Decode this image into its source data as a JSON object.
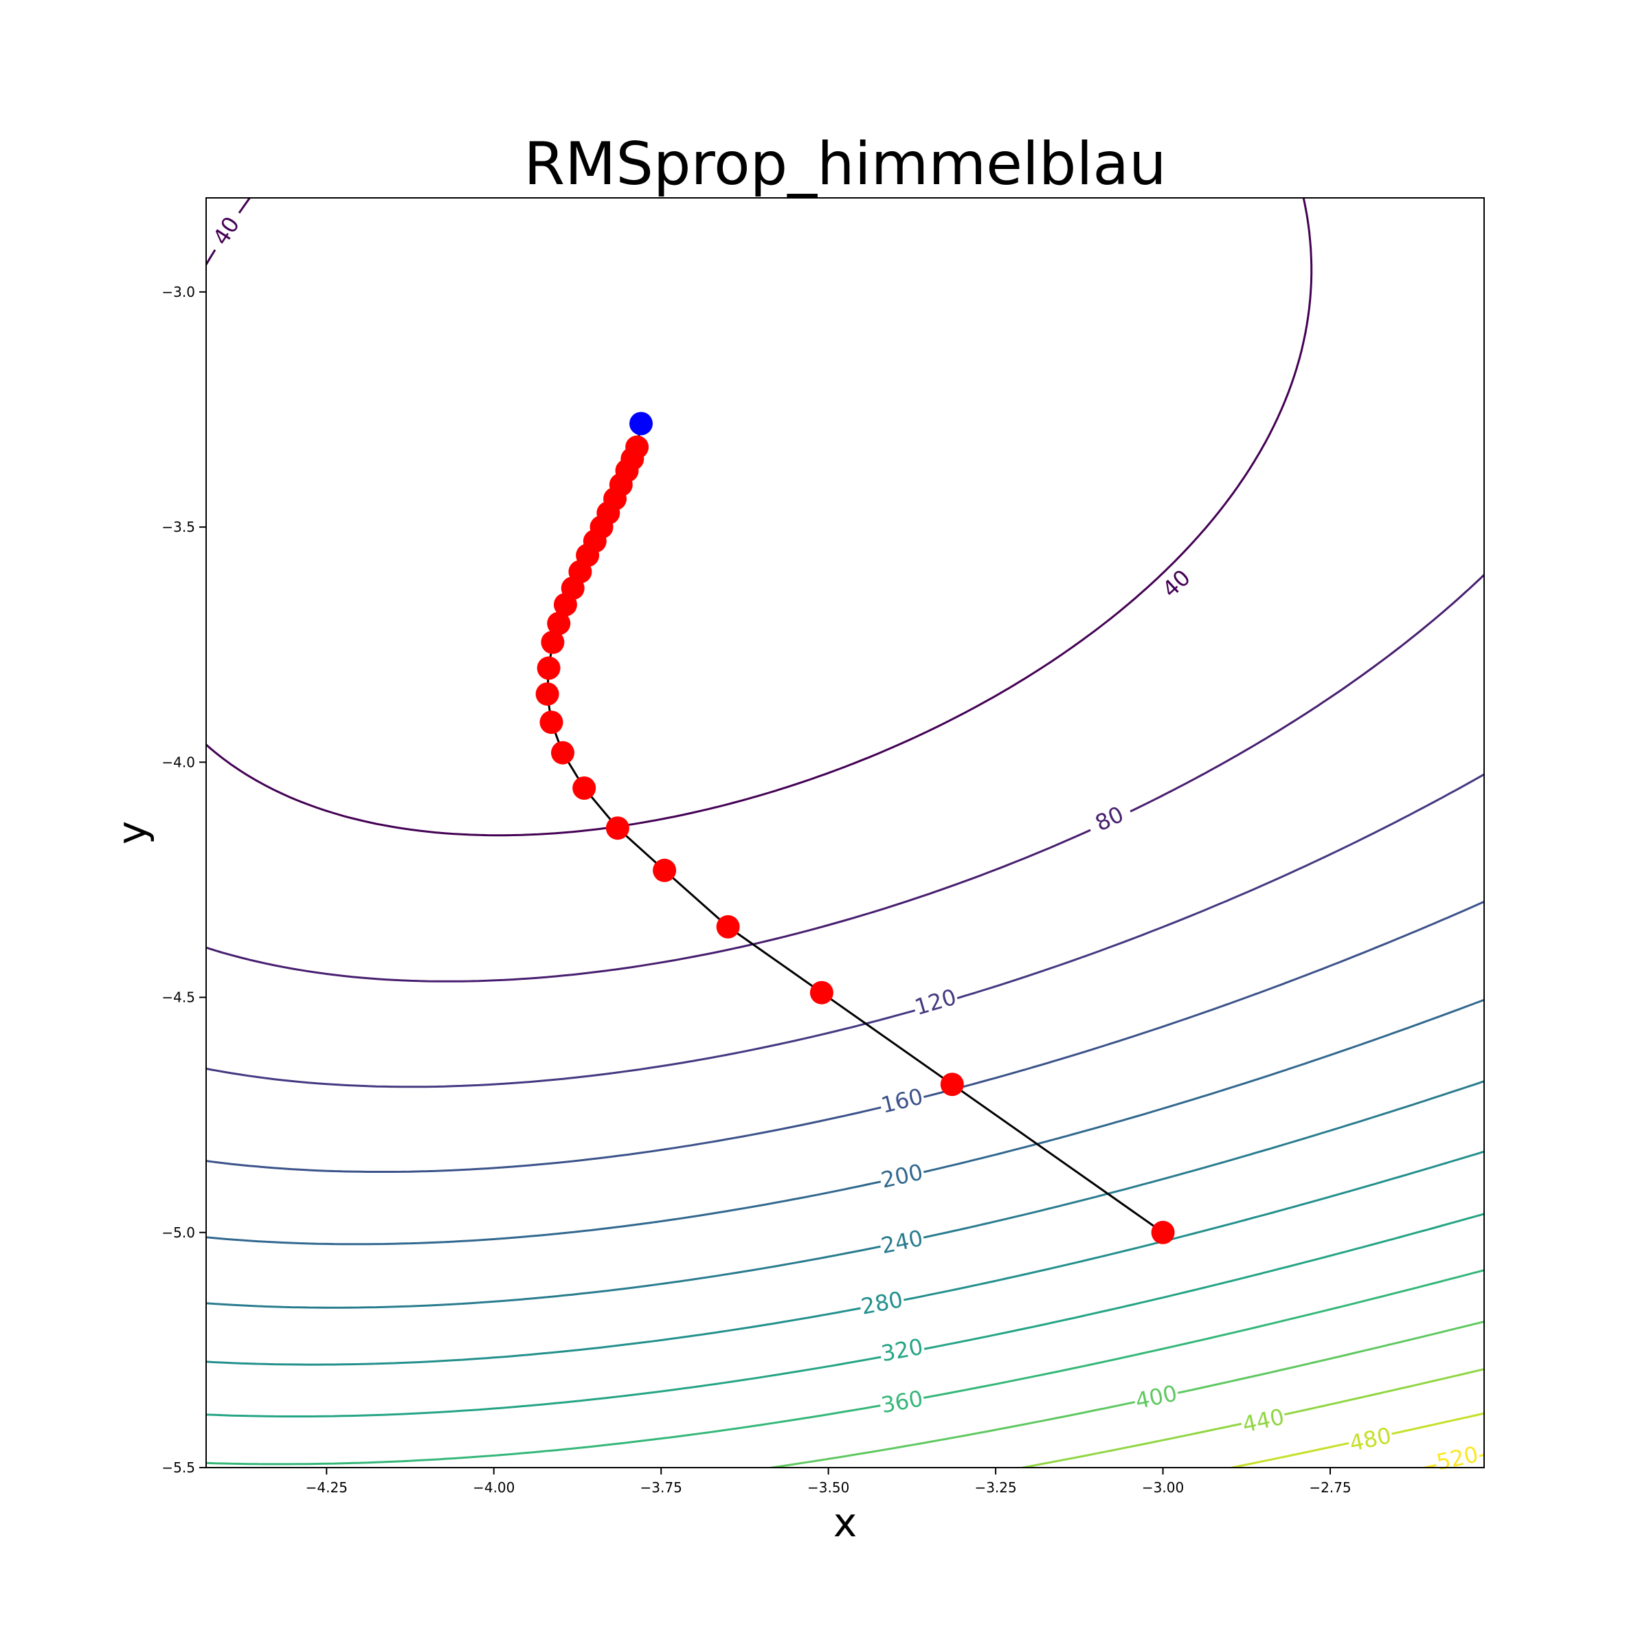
{
  "chart_data": {
    "type": "contour",
    "title": "RMSprop_himmelblau",
    "xlabel": "x",
    "ylabel": "y",
    "xlim": [
      -4.43,
      -2.52
    ],
    "ylim": [
      -5.5,
      -2.8
    ],
    "x_ticks": [
      -4.25,
      -4.0,
      -3.75,
      -3.5,
      -3.25,
      -3.0,
      -2.75
    ],
    "x_tick_labels": [
      "−4.25",
      "−4.00",
      "−3.75",
      "−3.50",
      "−3.25",
      "−3.00",
      "−2.75"
    ],
    "y_ticks": [
      -3.0,
      -3.5,
      -4.0,
      -4.5,
      -5.0,
      -5.5
    ],
    "y_tick_labels": [
      "−3.0",
      "−3.5",
      "−4.0",
      "−4.5",
      "−5.0",
      "−5.5"
    ],
    "function": "himmelblau",
    "contour_levels": [
      40,
      80,
      120,
      160,
      200,
      240,
      280,
      320,
      360,
      400,
      440,
      480,
      520
    ],
    "contour_labels": [
      {
        "text": "40",
        "x": -4.4,
        "y": -2.87
      },
      {
        "text": "40",
        "x": -2.98,
        "y": -3.62
      },
      {
        "text": "80",
        "x": -3.08,
        "y": -4.12
      },
      {
        "text": "120",
        "x": -3.34,
        "y": -4.51
      },
      {
        "text": "160",
        "x": -3.39,
        "y": -4.72
      },
      {
        "text": "200",
        "x": -3.39,
        "y": -4.88
      },
      {
        "text": "240",
        "x": -3.39,
        "y": -5.02
      },
      {
        "text": "280",
        "x": -3.42,
        "y": -5.15
      },
      {
        "text": "320",
        "x": -3.39,
        "y": -5.25
      },
      {
        "text": "360",
        "x": -3.39,
        "y": -5.36
      },
      {
        "text": "400",
        "x": -3.01,
        "y": -5.35
      },
      {
        "text": "440",
        "x": -2.85,
        "y": -5.4
      },
      {
        "text": "480",
        "x": -2.69,
        "y": -5.44
      },
      {
        "text": "520",
        "x": -2.56,
        "y": -5.48
      }
    ],
    "colormap": "viridis",
    "path": {
      "color": "#000000",
      "marker_color": "#ff0000",
      "end_marker_color": "#0000ff",
      "x": [
        -3.0,
        -3.315,
        -3.51,
        -3.65,
        -3.745,
        -3.815,
        -3.865,
        -3.897,
        -3.914,
        -3.92,
        -3.918,
        -3.912,
        -3.903,
        -3.893,
        -3.882,
        -3.871,
        -3.86,
        -3.849,
        -3.839,
        -3.829,
        -3.819,
        -3.81,
        -3.801,
        -3.793,
        -3.786,
        -3.78
      ],
      "y": [
        -5.0,
        -4.685,
        -4.49,
        -4.35,
        -4.23,
        -4.14,
        -4.055,
        -3.98,
        -3.915,
        -3.855,
        -3.8,
        -3.745,
        -3.705,
        -3.665,
        -3.63,
        -3.595,
        -3.56,
        -3.53,
        -3.5,
        -3.47,
        -3.44,
        -3.41,
        -3.38,
        -3.355,
        -3.33,
        -3.28
      ]
    }
  }
}
